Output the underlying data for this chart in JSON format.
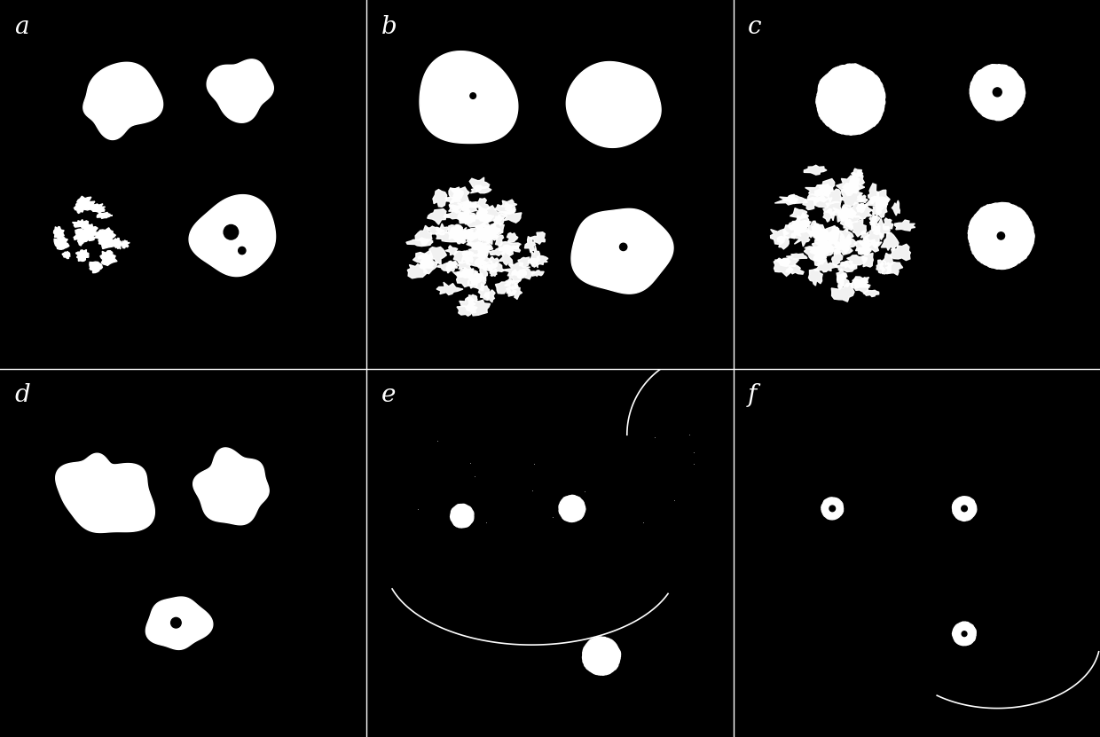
{
  "bg_color": "#000000",
  "label_fontsize": 20,
  "panels": [
    "a",
    "b",
    "c",
    "d",
    "e",
    "f"
  ],
  "panel_positions": {
    "a": [
      0,
      1,
      0,
      1
    ],
    "b": [
      1,
      2,
      0,
      1
    ],
    "c": [
      2,
      3,
      0,
      1
    ],
    "d": [
      0,
      1,
      1,
      2
    ],
    "e": [
      1,
      2,
      1,
      2
    ],
    "f": [
      2,
      3,
      1,
      2
    ]
  }
}
